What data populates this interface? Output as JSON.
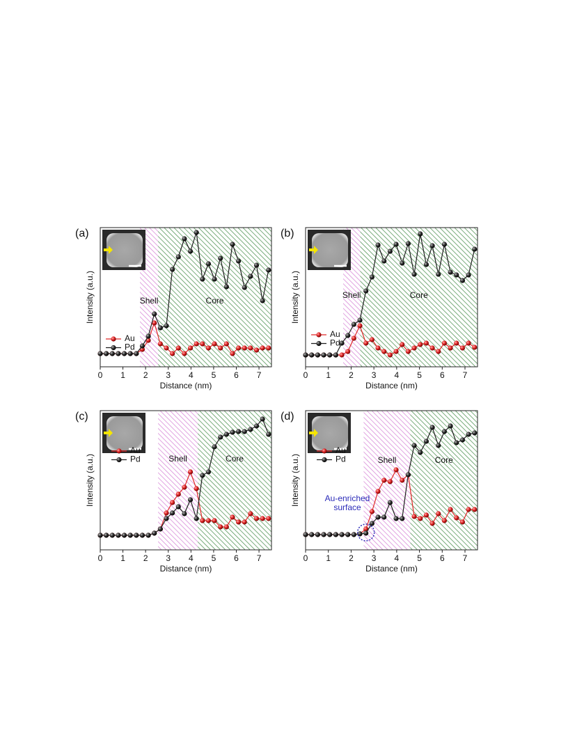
{
  "chart_data": [
    {
      "type": "line",
      "label": "(a)",
      "x_label": "Distance (nm)",
      "y_label": "Intensity (a.u.)",
      "xlim": [
        0,
        7.55
      ],
      "ylim": [
        0,
        100
      ],
      "xticks": [
        0,
        1,
        2,
        3,
        4,
        5,
        6,
        7
      ],
      "x": [
        0,
        0.265,
        0.53,
        0.795,
        1.06,
        1.325,
        1.59,
        1.855,
        2.12,
        2.385,
        2.65,
        2.915,
        3.18,
        3.445,
        3.71,
        3.975,
        4.24,
        4.505,
        4.77,
        5.035,
        5.3,
        5.565,
        5.83,
        6.095,
        6.36,
        6.625,
        6.89,
        7.155,
        7.42
      ],
      "regions": [
        {
          "label": "Shell",
          "range": [
            1.75,
            2.55
          ],
          "color": "#d070d0"
        },
        {
          "label": "Core",
          "range": [
            2.55,
            7.55
          ],
          "color": "#2e7d32"
        }
      ],
      "series": [
        {
          "name": "Au",
          "color": "#e02828",
          "values": [
            9.5,
            9.5,
            9.5,
            9.5,
            9.5,
            9.5,
            9.5,
            12.5,
            19,
            31.5,
            16.5,
            13.5,
            9.5,
            13.5,
            9.5,
            13.5,
            16.5,
            16.5,
            13.5,
            16.5,
            13.5,
            16.5,
            9.5,
            13.5,
            13.5,
            13.5,
            12,
            13.5,
            13.5
          ]
        },
        {
          "name": "Pd",
          "color": "#1e1e1e",
          "values": [
            9.5,
            9.5,
            9.5,
            9.5,
            9.5,
            9.5,
            9.5,
            15,
            22,
            38,
            28,
            29.5,
            70,
            79,
            92,
            83,
            96.5,
            63,
            74,
            63,
            78,
            57.5,
            88,
            76,
            57,
            65,
            73,
            47.5,
            69.5
          ]
        }
      ]
    },
    {
      "type": "line",
      "label": "(b)",
      "x_label": "Distance (nm)",
      "y_label": "Intensity (a.u.)",
      "xlim": [
        0,
        7.55
      ],
      "ylim": [
        0,
        100
      ],
      "xticks": [
        0,
        1,
        2,
        3,
        4,
        5,
        6,
        7
      ],
      "x": [
        0,
        0.265,
        0.53,
        0.795,
        1.06,
        1.325,
        1.59,
        1.855,
        2.12,
        2.385,
        2.65,
        2.915,
        3.18,
        3.445,
        3.71,
        3.975,
        4.24,
        4.505,
        4.77,
        5.035,
        5.3,
        5.565,
        5.83,
        6.095,
        6.36,
        6.625,
        6.89,
        7.155,
        7.42
      ],
      "regions": [
        {
          "label": "Shell",
          "range": [
            1.65,
            2.4
          ],
          "color": "#d070d0"
        },
        {
          "label": "Core",
          "range": [
            2.4,
            7.55
          ],
          "color": "#2e7d32"
        }
      ],
      "series": [
        {
          "name": "Au",
          "color": "#e02828",
          "values": [
            8.5,
            8.5,
            8.5,
            8.5,
            8.5,
            8.5,
            8.5,
            11,
            20.5,
            29.5,
            17,
            19.5,
            13.5,
            11,
            8.5,
            11,
            16,
            11,
            13.5,
            16,
            17,
            13.5,
            11,
            17,
            13.5,
            17,
            13.5,
            17,
            14
          ]
        },
        {
          "name": "Pd",
          "color": "#1e1e1e",
          "values": [
            8.5,
            8.5,
            8.5,
            8.5,
            8.5,
            8.5,
            17,
            22.5,
            30.5,
            33.5,
            54.5,
            64.5,
            87.5,
            76,
            83,
            88,
            74.5,
            88.5,
            66.5,
            95.5,
            73.5,
            87,
            66.5,
            88,
            68,
            66,
            62,
            66,
            84.5
          ]
        }
      ]
    },
    {
      "type": "line",
      "label": "(c)",
      "x_label": "Distance (nm)",
      "y_label": "Intensity (a.u.)",
      "xlim": [
        0,
        7.55
      ],
      "ylim": [
        0,
        100
      ],
      "xticks": [
        0,
        1,
        2,
        3,
        4,
        5,
        6,
        7
      ],
      "x": [
        0,
        0.265,
        0.53,
        0.795,
        1.06,
        1.325,
        1.59,
        1.855,
        2.12,
        2.385,
        2.65,
        2.915,
        3.18,
        3.445,
        3.71,
        3.975,
        4.24,
        4.505,
        4.77,
        5.035,
        5.3,
        5.565,
        5.83,
        6.095,
        6.36,
        6.625,
        6.89,
        7.155,
        7.42
      ],
      "regions": [
        {
          "label": "Shell",
          "range": [
            2.55,
            4.3
          ],
          "color": "#d070d0"
        },
        {
          "label": "Core",
          "range": [
            4.3,
            7.55
          ],
          "color": "#2e7d32"
        }
      ],
      "series": [
        {
          "name": "Au",
          "color": "#e02828",
          "values": [
            10.5,
            10.5,
            10.5,
            10.5,
            10.5,
            10.5,
            10.5,
            10.5,
            10.5,
            12,
            15,
            26.5,
            34,
            40,
            45,
            56,
            44,
            21,
            21,
            21,
            16.5,
            16.5,
            23.5,
            20,
            20,
            26,
            22.5,
            22.5,
            22.5
          ]
        },
        {
          "name": "Pd",
          "color": "#1e1e1e",
          "values": [
            10.5,
            10.5,
            10.5,
            10.5,
            10.5,
            10.5,
            10.5,
            10.5,
            10.5,
            12,
            15,
            22.5,
            26.5,
            31,
            26,
            36,
            22.5,
            53.5,
            56,
            74,
            81,
            83,
            84.5,
            85,
            85,
            86.5,
            89,
            94,
            83
          ]
        }
      ]
    },
    {
      "type": "line",
      "label": "(d)",
      "x_label": "Distance (nm)",
      "y_label": "Intensity (a.u.)",
      "xlim": [
        0,
        7.55
      ],
      "ylim": [
        0,
        100
      ],
      "xticks": [
        0,
        1,
        2,
        3,
        4,
        5,
        6,
        7
      ],
      "x": [
        0,
        0.265,
        0.53,
        0.795,
        1.06,
        1.325,
        1.59,
        1.855,
        2.12,
        2.385,
        2.65,
        2.915,
        3.18,
        3.445,
        3.71,
        3.975,
        4.24,
        4.505,
        4.77,
        5.035,
        5.3,
        5.565,
        5.83,
        6.095,
        6.36,
        6.625,
        6.89,
        7.155,
        7.42
      ],
      "regions": [
        {
          "label": "Shell",
          "range": [
            2.55,
            4.6
          ],
          "color": "#d070d0"
        },
        {
          "label": "Core",
          "range": [
            4.6,
            7.55
          ],
          "color": "#2e7d32"
        }
      ],
      "annotation_lines": [
        "Au-enriched",
        "surface"
      ],
      "series": [
        {
          "name": "Au",
          "color": "#e02828",
          "values": [
            11,
            11,
            11,
            11,
            11,
            11,
            11,
            11,
            11,
            11.5,
            15,
            27.5,
            42,
            50,
            49,
            57.5,
            50,
            54,
            24,
            22.5,
            25,
            19,
            26,
            21,
            29,
            23,
            20,
            29,
            29
          ]
        },
        {
          "name": "Pd",
          "color": "#1e1e1e",
          "values": [
            11,
            11,
            11,
            11,
            11,
            11,
            11,
            11,
            11,
            11.5,
            12,
            19,
            23.5,
            23.5,
            34,
            22.5,
            22.5,
            54,
            75,
            70,
            78,
            88,
            75,
            85,
            89,
            77,
            79,
            83,
            84
          ]
        }
      ]
    }
  ]
}
